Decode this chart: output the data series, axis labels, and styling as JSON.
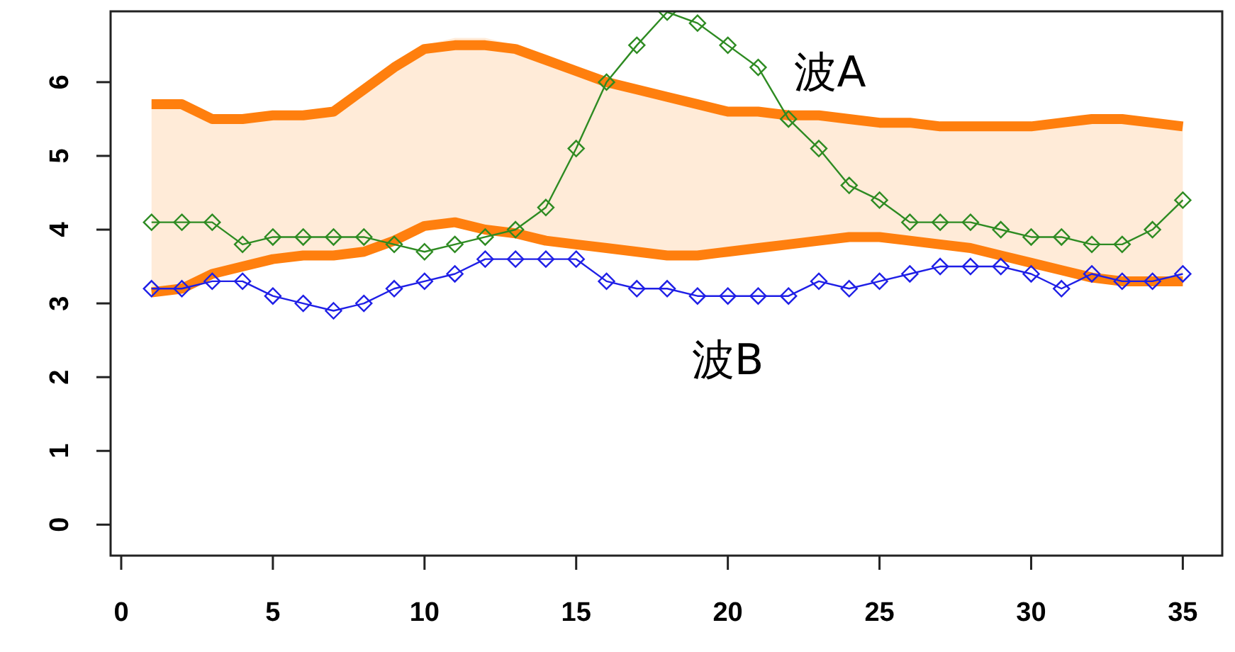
{
  "chart_data": {
    "type": "line",
    "x": [
      1,
      2,
      3,
      4,
      5,
      6,
      7,
      8,
      9,
      10,
      11,
      12,
      13,
      14,
      15,
      16,
      17,
      18,
      19,
      20,
      21,
      22,
      23,
      24,
      25,
      26,
      27,
      28,
      29,
      30,
      31,
      32,
      33,
      34,
      35
    ],
    "xlim": [
      -0.35,
      36.3
    ],
    "ylim": [
      -0.42,
      6.96
    ],
    "xticks": [
      0,
      5,
      10,
      15,
      20,
      25,
      30,
      35
    ],
    "yticks": [
      0,
      1,
      2,
      3,
      4,
      5,
      6
    ],
    "grid": false,
    "legend": false,
    "series": [
      {
        "type": "line",
        "color": "#ff7f0e",
        "marker": "none",
        "values": [
          5.7,
          5.7,
          5.5,
          5.5,
          5.55,
          5.55,
          5.6,
          5.9,
          6.2,
          6.45,
          6.5,
          6.5,
          6.45,
          6.3,
          6.15,
          6.0,
          5.9,
          5.8,
          5.7,
          5.6,
          5.6,
          5.55,
          5.55,
          5.5,
          5.45,
          5.45,
          5.4,
          5.4,
          5.4,
          5.4,
          5.45,
          5.5,
          5.5,
          5.45,
          5.4
        ],
        "upper": [
          5.75,
          5.75,
          5.55,
          5.55,
          5.6,
          5.6,
          5.65,
          5.95,
          6.25,
          6.5,
          6.6,
          6.6,
          6.5,
          6.35,
          6.2,
          6.05,
          5.95,
          5.85,
          5.75,
          5.65,
          5.65,
          5.6,
          5.6,
          5.55,
          5.5,
          5.5,
          5.45,
          5.45,
          5.45,
          5.45,
          5.5,
          5.55,
          5.55,
          5.5,
          5.45
        ],
        "lower": [
          3.1,
          3.15,
          3.35,
          3.45,
          3.55,
          3.6,
          3.6,
          3.65,
          3.8,
          4.0,
          4.05,
          3.95,
          3.9,
          3.8,
          3.75,
          3.7,
          3.65,
          3.6,
          3.6,
          3.65,
          3.7,
          3.75,
          3.8,
          3.85,
          3.85,
          3.8,
          3.75,
          3.7,
          3.6,
          3.5,
          3.4,
          3.3,
          3.25,
          3.25,
          3.25
        ]
      },
      {
        "type": "line",
        "color": "#ff7f0e",
        "marker": "none",
        "values": [
          3.15,
          3.2,
          3.4,
          3.5,
          3.6,
          3.65,
          3.65,
          3.7,
          3.85,
          4.05,
          4.1,
          4.0,
          3.95,
          3.85,
          3.8,
          3.75,
          3.7,
          3.65,
          3.65,
          3.7,
          3.75,
          3.8,
          3.85,
          3.9,
          3.9,
          3.85,
          3.8,
          3.75,
          3.65,
          3.55,
          3.45,
          3.35,
          3.3,
          3.3,
          3.3
        ]
      },
      {
        "type": "line",
        "name": "波A",
        "color": "#2e8b22",
        "marker": "diamond",
        "values": [
          4.1,
          4.1,
          4.1,
          3.8,
          3.9,
          3.9,
          3.9,
          3.9,
          3.8,
          3.7,
          3.8,
          3.9,
          4.0,
          4.3,
          5.1,
          6.0,
          6.5,
          6.95,
          6.8,
          6.5,
          6.2,
          5.5,
          5.1,
          4.6,
          4.4,
          4.1,
          4.1,
          4.1,
          4.0,
          3.9,
          3.9,
          3.8,
          3.8,
          4.0,
          4.4
        ]
      },
      {
        "type": "line",
        "name": "波B",
        "color": "#1f1fe6",
        "marker": "diamond",
        "values": [
          3.2,
          3.2,
          3.3,
          3.3,
          3.1,
          3.0,
          2.9,
          3.0,
          3.2,
          3.3,
          3.4,
          3.6,
          3.6,
          3.6,
          3.6,
          3.3,
          3.2,
          3.2,
          3.1,
          3.1,
          3.1,
          3.1,
          3.3,
          3.2,
          3.3,
          3.4,
          3.5,
          3.5,
          3.5,
          3.4,
          3.2,
          3.4,
          3.3,
          3.3,
          3.4
        ]
      }
    ]
  }
}
